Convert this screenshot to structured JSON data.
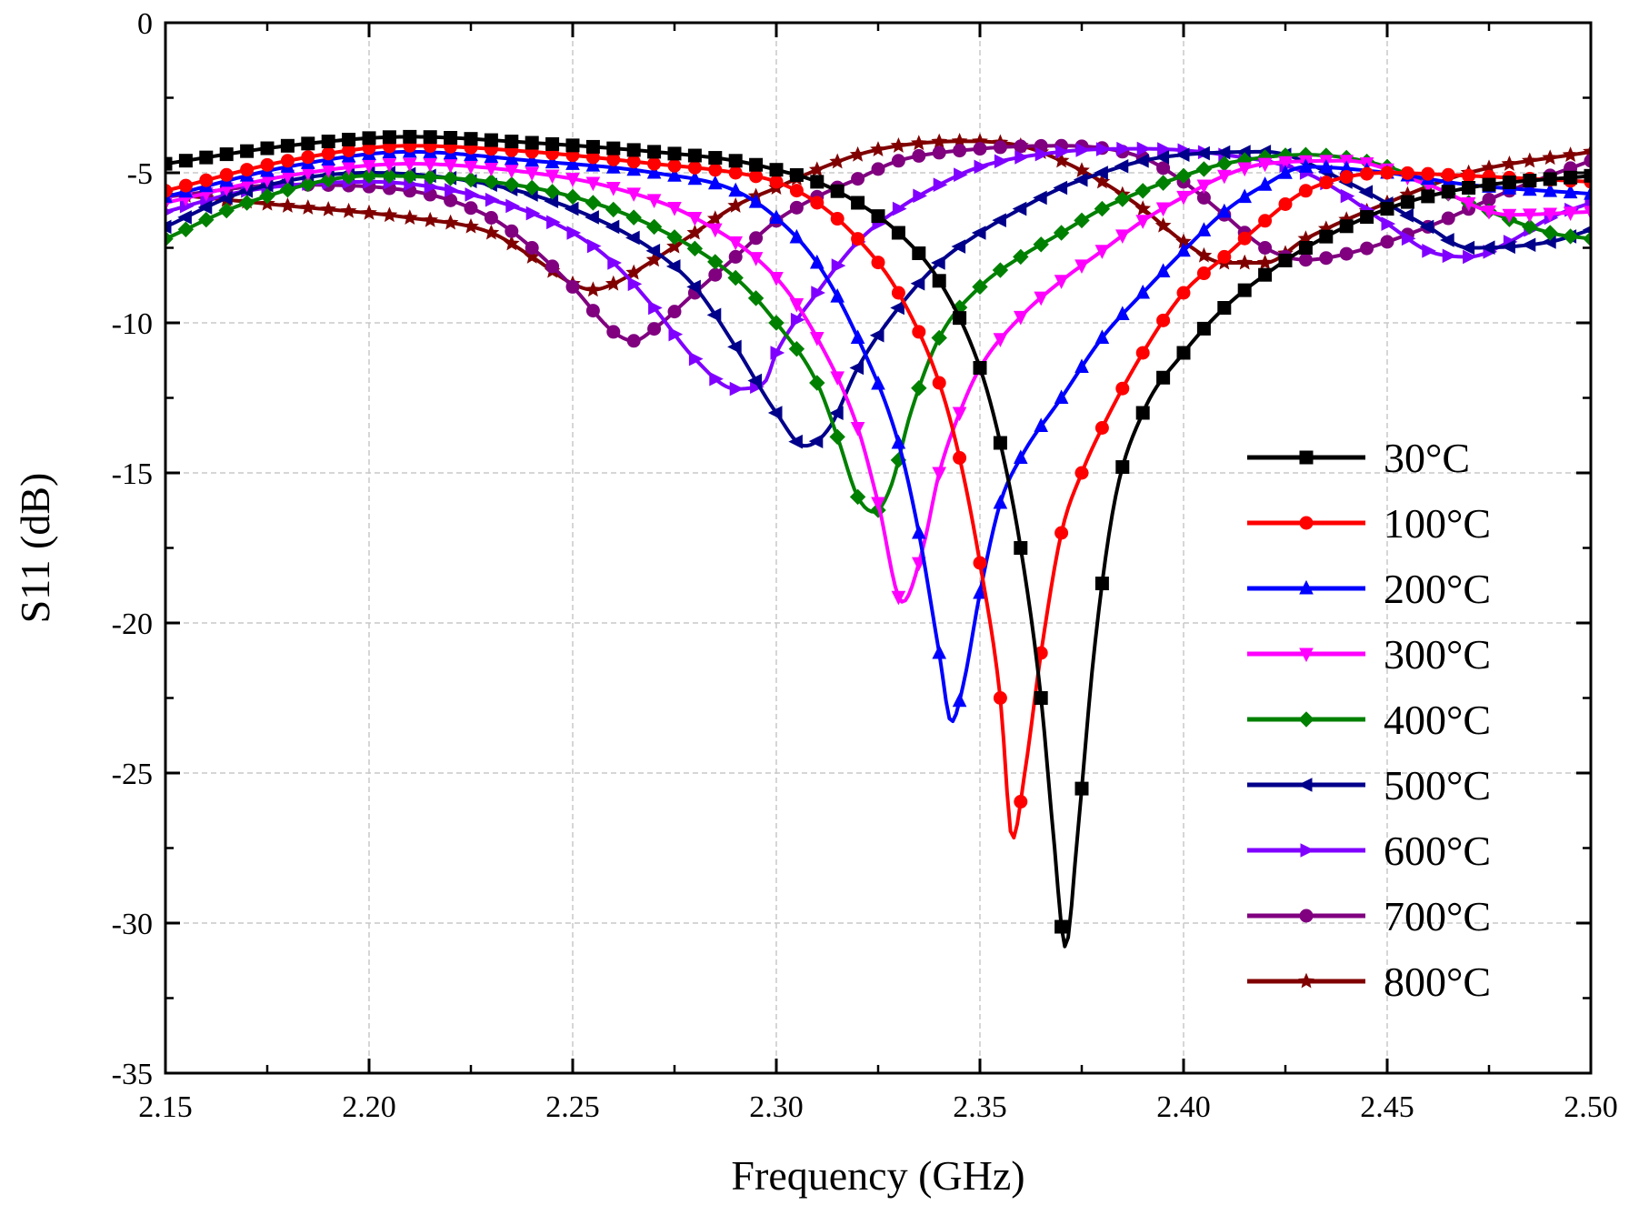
{
  "chart_data": {
    "type": "line",
    "title": "",
    "xlabel": "Frequency (GHz)",
    "ylabel": "S11 (dB)",
    "xlim": [
      2.15,
      2.5
    ],
    "ylim": [
      -35,
      0
    ],
    "xticks": [
      2.15,
      2.2,
      2.25,
      2.3,
      2.35,
      2.4,
      2.45,
      2.5
    ],
    "xtick_labels": [
      "2.15",
      "2.20",
      "2.25",
      "2.30",
      "2.35",
      "2.40",
      "2.45",
      "2.50"
    ],
    "yticks": [
      0,
      -5,
      -10,
      -15,
      -20,
      -25,
      -30,
      -35
    ],
    "ytick_labels": [
      "0",
      "-5",
      "-10",
      "-15",
      "-20",
      "-25",
      "-30",
      "-35"
    ],
    "grid": true,
    "legend_position": "right",
    "series": [
      {
        "name": "30°C",
        "color": "#000000",
        "marker": "square",
        "points": [
          [
            2.15,
            -4.7
          ],
          [
            2.18,
            -4.1
          ],
          [
            2.21,
            -3.8
          ],
          [
            2.24,
            -4.0
          ],
          [
            2.27,
            -4.3
          ],
          [
            2.29,
            -4.6
          ],
          [
            2.3,
            -4.9
          ],
          [
            2.31,
            -5.3
          ],
          [
            2.32,
            -6.0
          ],
          [
            2.33,
            -7.0
          ],
          [
            2.34,
            -8.6
          ],
          [
            2.35,
            -11.5
          ],
          [
            2.355,
            -14.0
          ],
          [
            2.36,
            -17.5
          ],
          [
            2.365,
            -22.5
          ],
          [
            2.368,
            -27.0
          ],
          [
            2.371,
            -30.8
          ],
          [
            2.374,
            -27.0
          ],
          [
            2.378,
            -21.0
          ],
          [
            2.383,
            -16.0
          ],
          [
            2.39,
            -13.0
          ],
          [
            2.4,
            -11.0
          ],
          [
            2.41,
            -9.5
          ],
          [
            2.42,
            -8.4
          ],
          [
            2.43,
            -7.5
          ],
          [
            2.45,
            -6.2
          ],
          [
            2.47,
            -5.5
          ],
          [
            2.5,
            -5.1
          ]
        ]
      },
      {
        "name": "100°C",
        "color": "#ff0000",
        "marker": "circle",
        "points": [
          [
            2.15,
            -5.6
          ],
          [
            2.18,
            -4.6
          ],
          [
            2.21,
            -4.1
          ],
          [
            2.24,
            -4.3
          ],
          [
            2.27,
            -4.7
          ],
          [
            2.29,
            -5.0
          ],
          [
            2.3,
            -5.3
          ],
          [
            2.31,
            -6.0
          ],
          [
            2.32,
            -7.2
          ],
          [
            2.33,
            -9.0
          ],
          [
            2.34,
            -12.0
          ],
          [
            2.345,
            -14.5
          ],
          [
            2.35,
            -18.0
          ],
          [
            2.355,
            -22.5
          ],
          [
            2.358,
            -27.2
          ],
          [
            2.361,
            -25.0
          ],
          [
            2.365,
            -21.0
          ],
          [
            2.37,
            -17.0
          ],
          [
            2.375,
            -15.0
          ],
          [
            2.38,
            -13.5
          ],
          [
            2.39,
            -11.0
          ],
          [
            2.4,
            -9.0
          ],
          [
            2.41,
            -7.8
          ],
          [
            2.42,
            -6.6
          ],
          [
            2.43,
            -5.6
          ],
          [
            2.45,
            -5.0
          ],
          [
            2.47,
            -5.1
          ],
          [
            2.5,
            -5.3
          ]
        ]
      },
      {
        "name": "200°C",
        "color": "#0000ff",
        "marker": "triangle-up",
        "points": [
          [
            2.15,
            -5.8
          ],
          [
            2.18,
            -4.8
          ],
          [
            2.21,
            -4.3
          ],
          [
            2.24,
            -4.6
          ],
          [
            2.27,
            -5.0
          ],
          [
            2.29,
            -5.6
          ],
          [
            2.3,
            -6.5
          ],
          [
            2.31,
            -8.0
          ],
          [
            2.32,
            -10.5
          ],
          [
            2.33,
            -14.0
          ],
          [
            2.335,
            -17.0
          ],
          [
            2.34,
            -21.0
          ],
          [
            2.343,
            -23.3
          ],
          [
            2.346,
            -22.0
          ],
          [
            2.35,
            -19.0
          ],
          [
            2.355,
            -16.0
          ],
          [
            2.36,
            -14.5
          ],
          [
            2.37,
            -12.5
          ],
          [
            2.38,
            -10.5
          ],
          [
            2.39,
            -9.0
          ],
          [
            2.4,
            -7.6
          ],
          [
            2.41,
            -6.3
          ],
          [
            2.42,
            -5.4
          ],
          [
            2.43,
            -4.8
          ],
          [
            2.45,
            -5.0
          ],
          [
            2.47,
            -5.4
          ],
          [
            2.5,
            -5.7
          ]
        ]
      },
      {
        "name": "300°C",
        "color": "#ff00ff",
        "marker": "triangle-down",
        "points": [
          [
            2.15,
            -6.0
          ],
          [
            2.18,
            -5.1
          ],
          [
            2.21,
            -4.7
          ],
          [
            2.24,
            -5.0
          ],
          [
            2.26,
            -5.5
          ],
          [
            2.28,
            -6.5
          ],
          [
            2.3,
            -8.5
          ],
          [
            2.31,
            -10.5
          ],
          [
            2.32,
            -13.5
          ],
          [
            2.325,
            -16.0
          ],
          [
            2.331,
            -19.3
          ],
          [
            2.336,
            -17.5
          ],
          [
            2.34,
            -15.0
          ],
          [
            2.345,
            -13.0
          ],
          [
            2.35,
            -11.5
          ],
          [
            2.36,
            -9.8
          ],
          [
            2.37,
            -8.6
          ],
          [
            2.38,
            -7.6
          ],
          [
            2.39,
            -6.6
          ],
          [
            2.4,
            -5.8
          ],
          [
            2.41,
            -5.1
          ],
          [
            2.42,
            -4.7
          ],
          [
            2.44,
            -4.6
          ],
          [
            2.46,
            -5.4
          ],
          [
            2.48,
            -6.4
          ],
          [
            2.5,
            -6.3
          ]
        ]
      },
      {
        "name": "400°C",
        "color": "#008000",
        "marker": "diamond",
        "points": [
          [
            2.15,
            -7.2
          ],
          [
            2.17,
            -6.0
          ],
          [
            2.2,
            -5.1
          ],
          [
            2.23,
            -5.3
          ],
          [
            2.25,
            -5.8
          ],
          [
            2.27,
            -6.8
          ],
          [
            2.29,
            -8.5
          ],
          [
            2.3,
            -10.0
          ],
          [
            2.31,
            -12.0
          ],
          [
            2.315,
            -13.8
          ],
          [
            2.32,
            -15.8
          ],
          [
            2.324,
            -16.3
          ],
          [
            2.328,
            -15.5
          ],
          [
            2.333,
            -13.0
          ],
          [
            2.34,
            -10.5
          ],
          [
            2.35,
            -8.8
          ],
          [
            2.36,
            -7.8
          ],
          [
            2.37,
            -7.0
          ],
          [
            2.38,
            -6.2
          ],
          [
            2.39,
            -5.6
          ],
          [
            2.4,
            -5.1
          ],
          [
            2.41,
            -4.7
          ],
          [
            2.43,
            -4.4
          ],
          [
            2.45,
            -4.8
          ],
          [
            2.47,
            -6.0
          ],
          [
            2.49,
            -7.0
          ],
          [
            2.5,
            -7.2
          ]
        ]
      },
      {
        "name": "500°C",
        "color": "#00008b",
        "marker": "triangle-left",
        "points": [
          [
            2.15,
            -6.8
          ],
          [
            2.17,
            -5.6
          ],
          [
            2.2,
            -5.0
          ],
          [
            2.23,
            -5.4
          ],
          [
            2.25,
            -6.2
          ],
          [
            2.27,
            -7.6
          ],
          [
            2.28,
            -8.8
          ],
          [
            2.29,
            -10.8
          ],
          [
            2.3,
            -13.0
          ],
          [
            2.307,
            -14.1
          ],
          [
            2.313,
            -13.5
          ],
          [
            2.32,
            -11.5
          ],
          [
            2.33,
            -9.5
          ],
          [
            2.34,
            -8.0
          ],
          [
            2.35,
            -7.0
          ],
          [
            2.36,
            -6.2
          ],
          [
            2.37,
            -5.5
          ],
          [
            2.38,
            -5.0
          ],
          [
            2.39,
            -4.6
          ],
          [
            2.4,
            -4.4
          ],
          [
            2.42,
            -4.3
          ],
          [
            2.44,
            -5.3
          ],
          [
            2.46,
            -6.8
          ],
          [
            2.47,
            -7.5
          ],
          [
            2.49,
            -7.3
          ],
          [
            2.5,
            -6.9
          ]
        ]
      },
      {
        "name": "600°C",
        "color": "#8000ff",
        "marker": "triangle-right",
        "points": [
          [
            2.15,
            -6.3
          ],
          [
            2.17,
            -5.6
          ],
          [
            2.2,
            -5.3
          ],
          [
            2.23,
            -5.9
          ],
          [
            2.25,
            -7.0
          ],
          [
            2.26,
            -8.0
          ],
          [
            2.27,
            -9.5
          ],
          [
            2.28,
            -11.2
          ],
          [
            2.29,
            -12.2
          ],
          [
            2.297,
            -12.0
          ],
          [
            2.3,
            -11.0
          ],
          [
            2.31,
            -9.0
          ],
          [
            2.32,
            -7.3
          ],
          [
            2.33,
            -6.2
          ],
          [
            2.34,
            -5.4
          ],
          [
            2.35,
            -4.8
          ],
          [
            2.37,
            -4.3
          ],
          [
            2.39,
            -4.2
          ],
          [
            2.41,
            -4.4
          ],
          [
            2.43,
            -5.0
          ],
          [
            2.45,
            -6.7
          ],
          [
            2.46,
            -7.6
          ],
          [
            2.47,
            -7.8
          ],
          [
            2.48,
            -7.3
          ],
          [
            2.49,
            -6.5
          ],
          [
            2.5,
            -6.0
          ]
        ]
      },
      {
        "name": "700°C",
        "color": "#800080",
        "marker": "circle",
        "points": [
          [
            2.15,
            -5.8
          ],
          [
            2.18,
            -5.4
          ],
          [
            2.21,
            -5.6
          ],
          [
            2.23,
            -6.5
          ],
          [
            2.24,
            -7.5
          ],
          [
            2.25,
            -8.8
          ],
          [
            2.26,
            -10.3
          ],
          [
            2.265,
            -10.6
          ],
          [
            2.27,
            -10.2
          ],
          [
            2.28,
            -9.0
          ],
          [
            2.29,
            -7.8
          ],
          [
            2.3,
            -6.6
          ],
          [
            2.31,
            -5.8
          ],
          [
            2.32,
            -5.2
          ],
          [
            2.33,
            -4.6
          ],
          [
            2.35,
            -4.2
          ],
          [
            2.37,
            -4.1
          ],
          [
            2.39,
            -4.5
          ],
          [
            2.4,
            -5.3
          ],
          [
            2.41,
            -6.4
          ],
          [
            2.42,
            -7.5
          ],
          [
            2.43,
            -7.9
          ],
          [
            2.44,
            -7.7
          ],
          [
            2.46,
            -6.8
          ],
          [
            2.48,
            -5.6
          ],
          [
            2.5,
            -4.6
          ]
        ]
      },
      {
        "name": "800°C",
        "color": "#800000",
        "marker": "star",
        "points": [
          [
            2.15,
            -5.7
          ],
          [
            2.18,
            -6.1
          ],
          [
            2.21,
            -6.5
          ],
          [
            2.23,
            -7.0
          ],
          [
            2.24,
            -7.8
          ],
          [
            2.25,
            -8.7
          ],
          [
            2.255,
            -8.9
          ],
          [
            2.26,
            -8.7
          ],
          [
            2.27,
            -7.9
          ],
          [
            2.28,
            -7.0
          ],
          [
            2.29,
            -6.1
          ],
          [
            2.3,
            -5.5
          ],
          [
            2.31,
            -4.9
          ],
          [
            2.32,
            -4.4
          ],
          [
            2.33,
            -4.1
          ],
          [
            2.345,
            -3.95
          ],
          [
            2.36,
            -4.1
          ],
          [
            2.37,
            -4.6
          ],
          [
            2.38,
            -5.3
          ],
          [
            2.39,
            -6.2
          ],
          [
            2.4,
            -7.3
          ],
          [
            2.41,
            -8.0
          ],
          [
            2.42,
            -8.0
          ],
          [
            2.43,
            -7.2
          ],
          [
            2.45,
            -6.0
          ],
          [
            2.47,
            -5.0
          ],
          [
            2.5,
            -4.3
          ]
        ]
      }
    ]
  }
}
